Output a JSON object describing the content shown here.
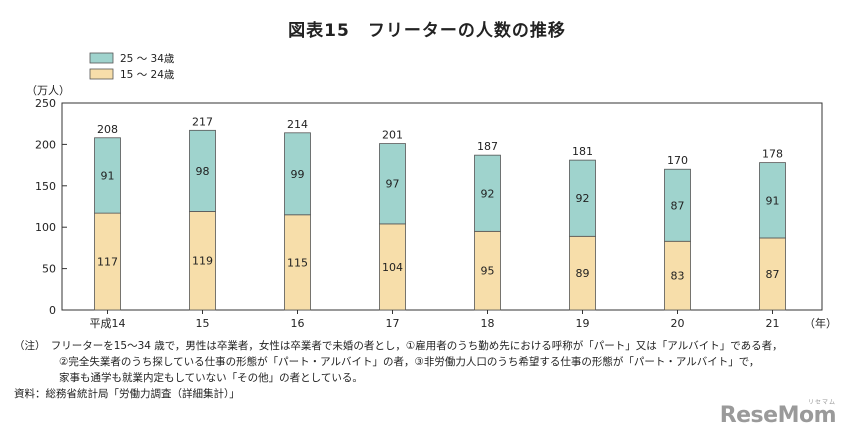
{
  "title": "図表15　フリーターの人数の推移",
  "chart_data": {
    "type": "bar",
    "stacked": true,
    "categories": [
      "平成14",
      "15",
      "16",
      "17",
      "18",
      "19",
      "20",
      "21"
    ],
    "series": [
      {
        "name": "15 ～ 24歳",
        "values": [
          117,
          119,
          115,
          104,
          95,
          89,
          83,
          87
        ],
        "color": "#f7deaa"
      },
      {
        "name": "25 ～ 34歳",
        "values": [
          91,
          98,
          99,
          97,
          92,
          92,
          87,
          91
        ],
        "color": "#9fd3cd"
      }
    ],
    "totals": [
      208,
      217,
      214,
      201,
      187,
      181,
      170,
      178
    ],
    "ylabel": "（万人）",
    "xunit": "（年）",
    "ylim": [
      0,
      250
    ],
    "yticks": [
      0,
      50,
      100,
      150,
      200,
      250
    ],
    "legend": "top-left",
    "grid": false
  },
  "notes": {
    "line1": "（注）　フリーターを15～34 歳で，男性は卒業者，女性は卒業者で未婚の者とし，①雇用者のうち勤め先における呼称が「パート」又は「アルバイト」である者，",
    "line2": "②完全失業者のうち探している仕事の形態が「パート・アルバイト」の者，③非労働力人口のうち希望する仕事の形態が「パート・アルバイト」で，",
    "line3": "家事も通学も就業内定もしていない「その他」の者としている。",
    "source": "資料：総務省統計局「労働力調査（詳細集計）」"
  },
  "logo": {
    "text": "ReseMom",
    "sub": "リセマム"
  }
}
